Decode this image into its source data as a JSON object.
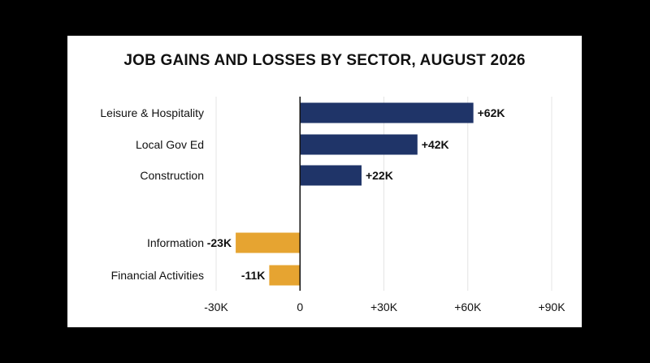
{
  "chart_data": {
    "type": "bar",
    "orientation": "horizontal",
    "title": "JOB GAINS AND LOSSES BY SECTOR, AUGUST 2026",
    "xlabel": "",
    "ylabel": "",
    "xlim": [
      -30,
      90
    ],
    "grid": true,
    "legend": "none",
    "categories": [
      "Leisure & Hospitality",
      "Local Gov Ed",
      "Construction",
      "Information",
      "Financial Activities"
    ],
    "values": [
      62,
      42,
      22,
      -23,
      -11
    ],
    "data_labels": [
      "+62K",
      "+42K",
      "+22K",
      "-23K",
      "-11K"
    ],
    "x_ticks": [
      -30,
      0,
      30,
      60,
      90
    ],
    "x_tick_labels": [
      "-30K",
      "0",
      "+30K",
      "+60K",
      "+90K"
    ],
    "colors": {
      "positive": "#1f3468",
      "negative": "#e6a431"
    }
  }
}
